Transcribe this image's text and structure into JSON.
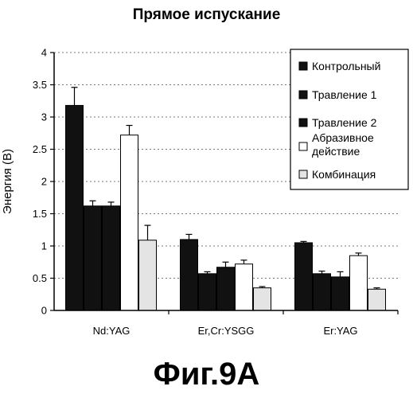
{
  "title": "Прямое испускание",
  "caption": "Фиг.9А",
  "colors": {
    "black_fill": "#111111",
    "white_fill": "#ffffff",
    "light_fill": "#e4e4e4",
    "grid": "#777777"
  },
  "chart_data": {
    "type": "bar",
    "title": "Прямое испускание",
    "xlabel": "",
    "ylabel": "Энергия (В)",
    "ylim": [
      0,
      4
    ],
    "yticks": [
      "0",
      "0.5",
      "1",
      "1.5",
      "2",
      "2.5",
      "3",
      "3.5",
      "4"
    ],
    "grid": "horizontal dashed",
    "legend_position": "top-right",
    "categories": [
      "Nd:YAG",
      "Er,Cr:YSGG",
      "Er:YAG"
    ],
    "series": [
      {
        "name": "Контрольный",
        "values": [
          3.18,
          1.1,
          1.05
        ],
        "errors": [
          0.28,
          0.08,
          0.02
        ],
        "fill": "black"
      },
      {
        "name": "Травление 1",
        "values": [
          1.62,
          0.57,
          0.57
        ],
        "errors": [
          0.08,
          0.03,
          0.04
        ],
        "fill": "black"
      },
      {
        "name": "Травление 2",
        "values": [
          1.62,
          0.67,
          0.52
        ],
        "errors": [
          0.06,
          0.08,
          0.08
        ],
        "fill": "black"
      },
      {
        "name": "Абразивное действие",
        "values": [
          2.72,
          0.72,
          0.85
        ],
        "errors": [
          0.15,
          0.06,
          0.04
        ],
        "fill": "white"
      },
      {
        "name": "Комбинация",
        "values": [
          1.09,
          0.35,
          0.33
        ],
        "errors": [
          0.23,
          0.02,
          0.02
        ],
        "fill": "light"
      }
    ]
  }
}
